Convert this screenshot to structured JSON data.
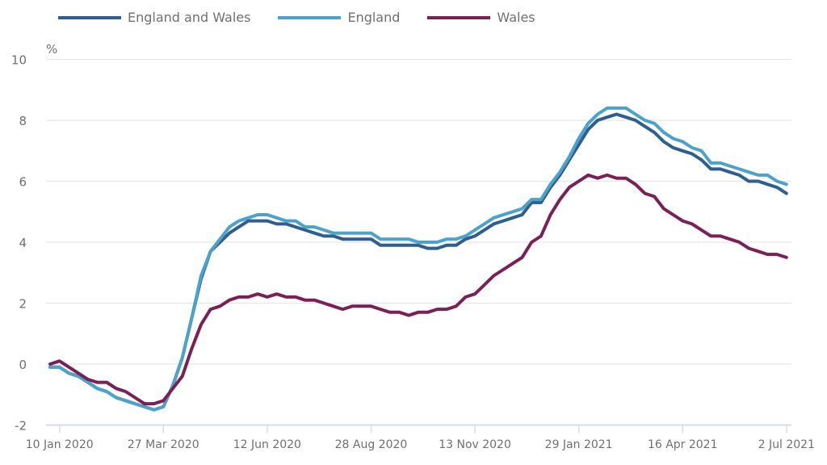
{
  "chart_data": {
    "type": "line",
    "title": "",
    "xlabel": "",
    "ylabel": "%",
    "ylim": [
      -2,
      10
    ],
    "yticks": [
      -2,
      0,
      2,
      4,
      6,
      8,
      10
    ],
    "grid": true,
    "legend_position": "top-left",
    "x_start": "3 Jan 2020",
    "x_interval": "weekly",
    "xtick_labels": [
      "10 Jan 2020",
      "27 Mar 2020",
      "12 Jun 2020",
      "28 Aug 2020",
      "13 Nov 2020",
      "29 Jan 2021",
      "16 Apr 2021",
      "2 Jul 2021"
    ],
    "xtick_index": [
      1,
      12,
      23,
      34,
      45,
      56,
      67,
      78
    ],
    "series": [
      {
        "name": "England and Wales",
        "color": "#2e5f8f",
        "values": [
          -0.1,
          -0.1,
          -0.3,
          -0.4,
          -0.6,
          -0.8,
          -0.9,
          -1.1,
          -1.2,
          -1.3,
          -1.4,
          -1.5,
          -1.4,
          -0.7,
          0.2,
          1.5,
          2.8,
          3.7,
          4.0,
          4.3,
          4.5,
          4.7,
          4.7,
          4.7,
          4.6,
          4.6,
          4.5,
          4.4,
          4.3,
          4.2,
          4.2,
          4.1,
          4.1,
          4.1,
          4.1,
          3.9,
          3.9,
          3.9,
          3.9,
          3.9,
          3.8,
          3.8,
          3.9,
          3.9,
          4.1,
          4.2,
          4.4,
          4.6,
          4.7,
          4.8,
          4.9,
          5.3,
          5.3,
          5.8,
          6.2,
          6.7,
          7.2,
          7.7,
          8.0,
          8.1,
          8.2,
          8.1,
          8.0,
          7.8,
          7.6,
          7.3,
          7.1,
          7.0,
          6.9,
          6.7,
          6.4,
          6.4,
          6.3,
          6.2,
          6.0,
          6.0,
          5.9,
          5.8,
          5.6
        ]
      },
      {
        "name": "England",
        "color": "#4ba3cc",
        "values": [
          -0.1,
          -0.1,
          -0.3,
          -0.4,
          -0.6,
          -0.8,
          -0.9,
          -1.1,
          -1.2,
          -1.3,
          -1.4,
          -1.5,
          -1.4,
          -0.7,
          0.2,
          1.5,
          2.9,
          3.7,
          4.1,
          4.5,
          4.7,
          4.8,
          4.9,
          4.9,
          4.8,
          4.7,
          4.7,
          4.5,
          4.5,
          4.4,
          4.3,
          4.3,
          4.3,
          4.3,
          4.3,
          4.1,
          4.1,
          4.1,
          4.1,
          4.0,
          4.0,
          4.0,
          4.1,
          4.1,
          4.2,
          4.4,
          4.6,
          4.8,
          4.9,
          5.0,
          5.1,
          5.4,
          5.4,
          5.9,
          6.3,
          6.8,
          7.4,
          7.9,
          8.2,
          8.4,
          8.4,
          8.4,
          8.2,
          8.0,
          7.9,
          7.6,
          7.4,
          7.3,
          7.1,
          7.0,
          6.6,
          6.6,
          6.5,
          6.4,
          6.3,
          6.2,
          6.2,
          6.0,
          5.9
        ]
      },
      {
        "name": "Wales",
        "color": "#7b1f57",
        "values": [
          0.0,
          0.1,
          -0.1,
          -0.3,
          -0.5,
          -0.6,
          -0.6,
          -0.8,
          -0.9,
          -1.1,
          -1.3,
          -1.3,
          -1.2,
          -0.8,
          -0.4,
          0.5,
          1.3,
          1.8,
          1.9,
          2.1,
          2.2,
          2.2,
          2.3,
          2.2,
          2.3,
          2.2,
          2.2,
          2.1,
          2.1,
          2.0,
          1.9,
          1.8,
          1.9,
          1.9,
          1.9,
          1.8,
          1.7,
          1.7,
          1.6,
          1.7,
          1.7,
          1.8,
          1.8,
          1.9,
          2.2,
          2.3,
          2.6,
          2.9,
          3.1,
          3.3,
          3.5,
          4.0,
          4.2,
          4.9,
          5.4,
          5.8,
          6.0,
          6.2,
          6.1,
          6.2,
          6.1,
          6.1,
          5.9,
          5.6,
          5.5,
          5.1,
          4.9,
          4.7,
          4.6,
          4.4,
          4.2,
          4.2,
          4.1,
          4.0,
          3.8,
          3.7,
          3.6,
          3.6,
          3.5
        ]
      }
    ]
  }
}
